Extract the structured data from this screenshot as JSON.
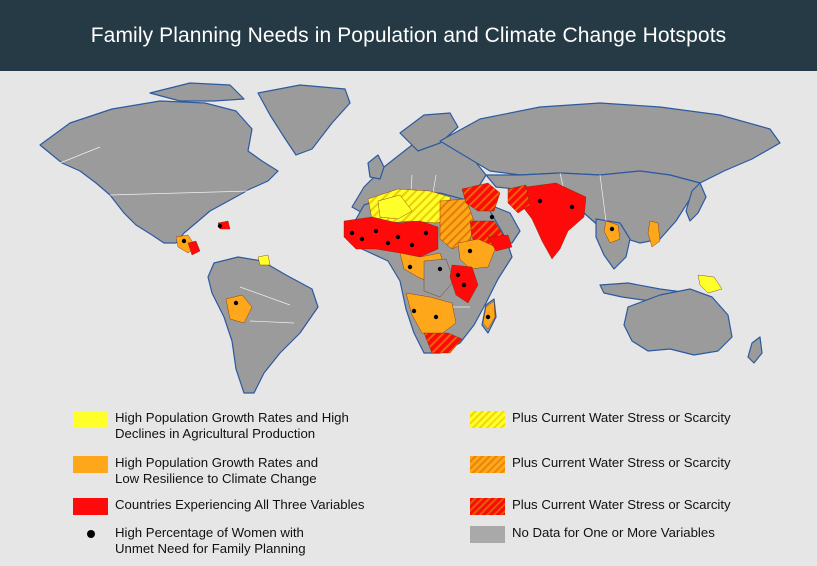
{
  "title": "Family Planning Needs in Population and Climate Change Hotspots",
  "colors": {
    "header_bg": "#253a45",
    "background": "#e6e6e7",
    "land_no_data": "#9b9b9b",
    "coast": "#2c5aa0",
    "yellow": "#ffff2a",
    "orange": "#ffa71a",
    "red": "#ff0a0a",
    "legend_grey": "#a9a9a9"
  },
  "legend": {
    "yellow": {
      "line1": "High Population Growth Rates and High",
      "line2": "Declines in Agricultural Production",
      "color": "#ffff2a"
    },
    "orange": {
      "line1": "High Population Growth Rates and",
      "line2": "Low Resilience to Climate Change",
      "color": "#ffa71a"
    },
    "red": {
      "line1": "Countries Experiencing All Three Variables",
      "color": "#ff0a0a"
    },
    "dot": {
      "line1": "High Percentage of Women with",
      "line2": "Unmet Need for Family Planning"
    },
    "yellow_hatched": {
      "line1": "Plus Current Water Stress or Scarcity"
    },
    "orange_hatched": {
      "line1": "Plus Current Water Stress or Scarcity"
    },
    "red_hatched": {
      "line1": "Plus Current Water Stress or Scarcity"
    },
    "no_data": {
      "line1": "No Data for One or More Variables",
      "color": "#a9a9a9"
    }
  }
}
